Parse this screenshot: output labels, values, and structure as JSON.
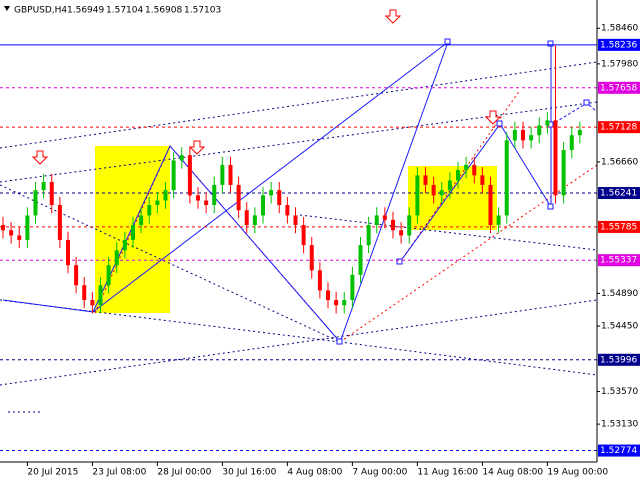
{
  "chart_data": {
    "type": "candlestick",
    "symbol": "GBPUSD,H4",
    "header_values": [
      1.56949,
      1.57104,
      1.56908,
      1.57103
    ],
    "categories": [
      null,
      null,
      null,
      "20 Jul 2015",
      null,
      null,
      null,
      null,
      null,
      null,
      null,
      "23 Jul 08:00",
      null,
      null,
      null,
      null,
      null,
      null,
      null,
      "28 Jul 00:00",
      null,
      null,
      null,
      null,
      null,
      null,
      null,
      "30 Jul 16:00",
      null,
      null,
      null,
      null,
      null,
      null,
      null,
      "4 Aug 08:00",
      null,
      null,
      null,
      null,
      null,
      null,
      null,
      "7 Aug 00:00",
      null,
      null,
      null,
      null,
      null,
      null,
      null,
      "11 Aug 16:00",
      null,
      null,
      null,
      null,
      null,
      null,
      null,
      "14 Aug 08:00",
      null,
      null,
      null,
      null,
      null,
      null,
      null,
      "19 Aug 00:00",
      null,
      null,
      null,
      null
    ],
    "open": [
      1.5581,
      1.5574,
      1.5567,
      1.5561,
      1.5594,
      1.5628,
      1.5639,
      1.5608,
      1.5561,
      1.5527,
      1.55,
      1.548,
      1.5473,
      1.55,
      1.5527,
      1.5547,
      1.5561,
      1.5581,
      1.5594,
      1.5608,
      1.5614,
      1.5628,
      1.5668,
      1.5675,
      1.5621,
      1.5614,
      1.5608,
      1.5635,
      1.5662,
      1.5635,
      1.5601,
      1.5581,
      1.5594,
      1.5621,
      1.5628,
      1.5608,
      1.5594,
      1.5581,
      1.5554,
      1.552,
      1.5493,
      1.548,
      1.5473,
      1.548,
      1.5514,
      1.5554,
      1.5581,
      1.5594,
      1.5588,
      1.5574,
      1.5567,
      1.5594,
      1.5648,
      1.5635,
      1.5621,
      1.5628,
      1.5641,
      1.5655,
      1.5662,
      1.5648,
      1.5635,
      1.5581,
      1.5594,
      1.5695,
      1.5709,
      1.5695,
      1.5702,
      1.5715,
      1.5722,
      1.5621,
      1.5682,
      1.5702
    ],
    "high": [
      1.5592,
      1.5585,
      1.5578,
      1.5605,
      1.5639,
      1.565,
      1.565,
      1.5619,
      1.5572,
      1.5538,
      1.5511,
      1.5491,
      1.5511,
      1.5538,
      1.5558,
      1.5572,
      1.5592,
      1.5605,
      1.5619,
      1.5625,
      1.5639,
      1.5679,
      1.5686,
      1.5686,
      1.5632,
      1.5625,
      1.5646,
      1.5673,
      1.5673,
      1.5646,
      1.5612,
      1.5605,
      1.5632,
      1.5639,
      1.5639,
      1.5619,
      1.5605,
      1.5592,
      1.5565,
      1.5531,
      1.5504,
      1.5491,
      1.5491,
      1.5525,
      1.5565,
      1.5592,
      1.5605,
      1.5605,
      1.5599,
      1.5585,
      1.5605,
      1.5659,
      1.5659,
      1.5646,
      1.5639,
      1.5652,
      1.5666,
      1.5673,
      1.5673,
      1.5659,
      1.5646,
      1.5605,
      1.5706,
      1.572,
      1.572,
      1.5713,
      1.5726,
      1.5733,
      1.5823,
      1.5693,
      1.5713,
      1.572
    ],
    "low": [
      1.5563,
      1.5556,
      1.555,
      1.555,
      1.5583,
      1.5617,
      1.5597,
      1.555,
      1.5516,
      1.5489,
      1.5469,
      1.5462,
      1.5462,
      1.5489,
      1.5516,
      1.5536,
      1.555,
      1.557,
      1.5583,
      1.5597,
      1.5603,
      1.5617,
      1.5657,
      1.561,
      1.5603,
      1.5597,
      1.5597,
      1.5624,
      1.5624,
      1.559,
      1.557,
      1.557,
      1.5583,
      1.561,
      1.5597,
      1.5583,
      1.557,
      1.5543,
      1.5509,
      1.5482,
      1.5469,
      1.5462,
      1.5462,
      1.5469,
      1.5503,
      1.5543,
      1.557,
      1.5577,
      1.5563,
      1.5556,
      1.5556,
      1.5583,
      1.5624,
      1.561,
      1.561,
      1.5617,
      1.563,
      1.5644,
      1.5637,
      1.5624,
      1.557,
      1.557,
      1.5583,
      1.5684,
      1.5684,
      1.5684,
      1.5691,
      1.5704,
      1.561,
      1.561,
      1.5671,
      1.5691
    ],
    "close": [
      1.5574,
      1.5567,
      1.5561,
      1.5594,
      1.5628,
      1.5639,
      1.5608,
      1.5561,
      1.5527,
      1.55,
      1.548,
      1.5473,
      1.55,
      1.5527,
      1.5547,
      1.5561,
      1.5581,
      1.5594,
      1.5608,
      1.5614,
      1.5628,
      1.5668,
      1.5675,
      1.5621,
      1.5614,
      1.5608,
      1.5635,
      1.5662,
      1.5635,
      1.5601,
      1.5581,
      1.5594,
      1.5621,
      1.5628,
      1.5608,
      1.5594,
      1.5581,
      1.5554,
      1.552,
      1.5493,
      1.548,
      1.5473,
      1.548,
      1.5514,
      1.5554,
      1.5581,
      1.5594,
      1.5588,
      1.5574,
      1.5567,
      1.5594,
      1.5648,
      1.5635,
      1.5621,
      1.5628,
      1.5641,
      1.5655,
      1.5662,
      1.5648,
      1.5635,
      1.5581,
      1.5594,
      1.5695,
      1.5709,
      1.5695,
      1.5702,
      1.5715,
      1.5722,
      1.5621,
      1.5682,
      1.5702,
      1.5709
    ],
    "up_color": "#00c000",
    "down_color": "#ff0000",
    "ylim": [
      1.5262,
      1.5884
    ],
    "yticks": [
      {
        "value": 1.5846,
        "label": "1.58460"
      },
      {
        "value": 1.5798,
        "label": "1.57980"
      },
      {
        "value": 1.5666,
        "label": "1.56660"
      },
      {
        "value": 1.5489,
        "label": "1.54890"
      },
      {
        "value": 1.5445,
        "label": "1.54450"
      },
      {
        "value": 1.5357,
        "label": "1.53570"
      },
      {
        "value": 1.5313,
        "label": "1.53130"
      }
    ],
    "levels": [
      {
        "value": 1.58236,
        "color": "#0000ff",
        "style": "solid"
      },
      {
        "value": 1.57658,
        "color": "#e000e0",
        "style": "dashed"
      },
      {
        "value": 1.57128,
        "color": "#ff0000",
        "style": "dashed"
      },
      {
        "value": 1.56241,
        "color": "#00008b",
        "style": "dashed"
      },
      {
        "value": 1.55785,
        "color": "#ff0000",
        "style": "dashed"
      },
      {
        "value": 1.55337,
        "color": "#e000e0",
        "style": "dashed"
      },
      {
        "value": 1.53996,
        "color": "#00008b",
        "style": "dashed"
      },
      {
        "value": 1.52774,
        "color": "#0000ff",
        "style": "dashed"
      }
    ]
  }
}
